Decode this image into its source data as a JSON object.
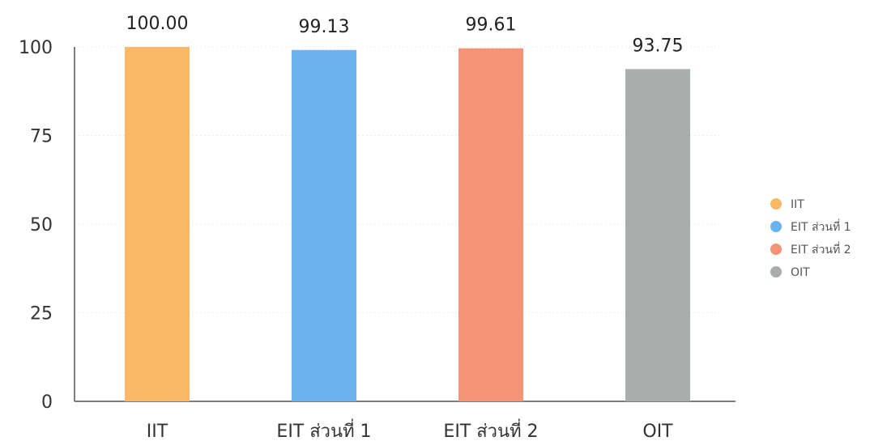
{
  "chart_data": {
    "type": "bar",
    "title": "",
    "xlabel": "",
    "ylabel": "",
    "categories": [
      "IIT",
      "EIT ส่วนที่ 1",
      "EIT ส่วนที่ 2",
      "OIT"
    ],
    "values": [
      100.0,
      99.13,
      99.61,
      93.75
    ],
    "value_labels": [
      "100.00",
      "99.13",
      "99.61",
      "93.75"
    ],
    "colors": [
      "#F9B865",
      "#6BB3EE",
      "#F59376",
      "#A9AEAD"
    ],
    "ylim": [
      0,
      100
    ],
    "yticks": [
      0,
      25,
      50,
      75,
      100
    ],
    "grid": true,
    "legend": {
      "position": "right",
      "entries": [
        "IIT",
        "EIT ส่วนที่ 1",
        "EIT ส่วนที่ 2",
        "OIT"
      ]
    }
  }
}
